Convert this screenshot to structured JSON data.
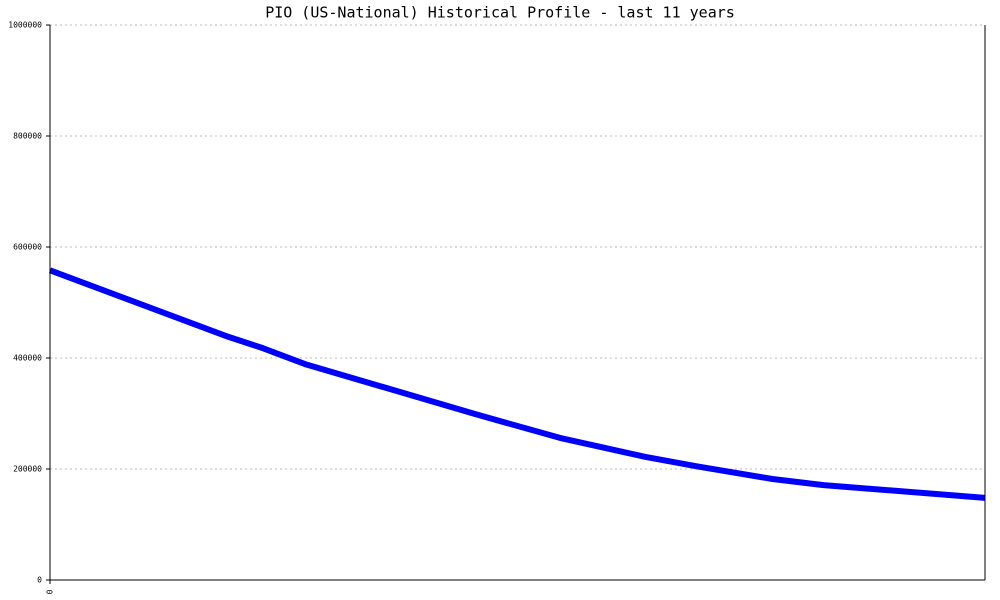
{
  "chart_data": {
    "type": "line",
    "title": "PIO (US-National) Historical Profile - last 11 years",
    "x": [
      0,
      2.1,
      2.5,
      3.0,
      5.0,
      6.0,
      7.0,
      7.6,
      8.5,
      9.1,
      11
    ],
    "series": [
      {
        "color": "#0000ff",
        "values": [
          558000,
          438000,
          418000,
          389000,
          299000,
          256000,
          222000,
          205000,
          182000,
          171000,
          148000
        ]
      }
    ],
    "xlim": [
      0,
      11
    ],
    "xticks": [
      0
    ],
    "ylim": [
      0,
      1000000
    ],
    "yticks": [
      0,
      200000,
      400000,
      600000,
      800000,
      1000000
    ],
    "grid": true
  }
}
